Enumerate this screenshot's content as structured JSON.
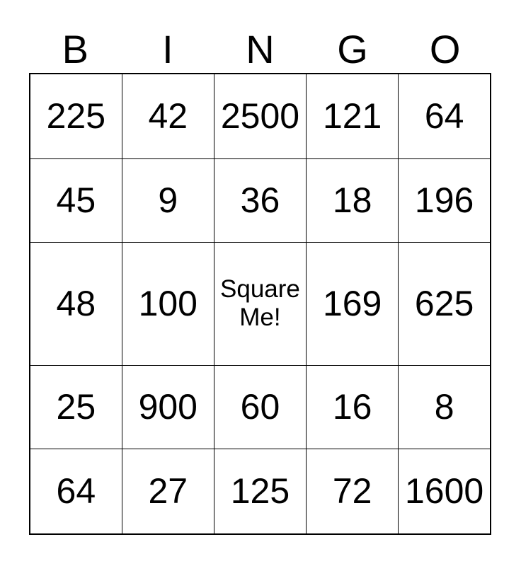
{
  "card": {
    "title_letters": [
      "B",
      "I",
      "N",
      "G",
      "O"
    ],
    "rows": [
      [
        "225",
        "42",
        "2500",
        "121",
        "64"
      ],
      [
        "45",
        "9",
        "36",
        "18",
        "196"
      ],
      [
        "48",
        "100",
        "Square Me!",
        "169",
        "625"
      ],
      [
        "25",
        "900",
        "60",
        "16",
        "8"
      ],
      [
        "64",
        "27",
        "125",
        "72",
        "1600"
      ]
    ],
    "free_cell": {
      "row": 2,
      "col": 2,
      "label": "Square Me!"
    },
    "colors": {
      "background": "#ffffff",
      "text": "#000000",
      "border": "#000000"
    }
  }
}
